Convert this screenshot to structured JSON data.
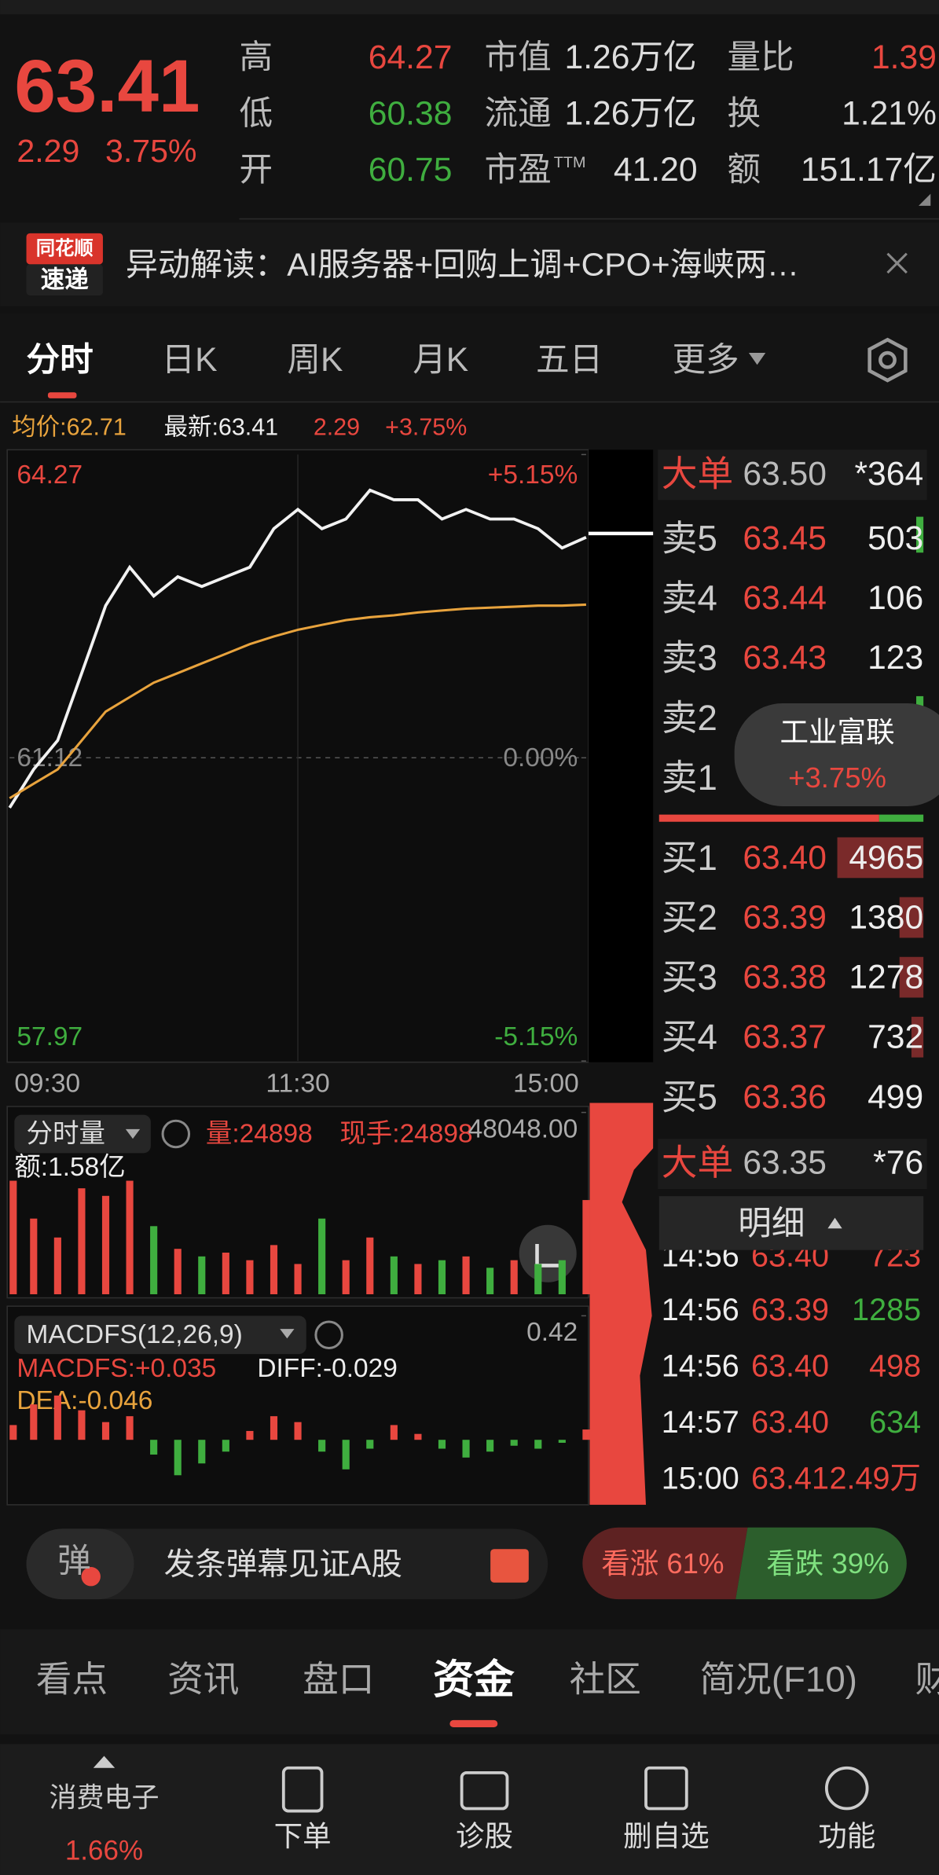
{
  "header": {
    "price": "63.41",
    "change": "2.29",
    "change_pct": "3.75%",
    "stats": [
      [
        {
          "label": "高",
          "value": "64.27"
        },
        {
          "label": "低",
          "value": "60.38"
        },
        {
          "label": "开",
          "value": "60.75"
        }
      ],
      [
        {
          "label": "市值",
          "value": "1.26万亿"
        },
        {
          "label": "流通",
          "value": "1.26万亿"
        },
        {
          "label": "市盈",
          "sup": "TTM",
          "value": "41.20"
        }
      ],
      [
        {
          "label": "量比",
          "value": "1.39"
        },
        {
          "label": "换",
          "value": "1.21%"
        },
        {
          "label": "额",
          "value": "151.17亿"
        }
      ]
    ]
  },
  "news": {
    "badge_top": "同花顺",
    "badge_bottom": "速递",
    "text": "异动解读：AI服务器+回购上调+CPO+海峡两…"
  },
  "tabs": [
    "分时",
    "日K",
    "周K",
    "月K",
    "五日",
    "更多"
  ],
  "info": {
    "avg": "均价:62.71",
    "latest": "最新:63.41",
    "change": "2.29",
    "pct": "+3.75%"
  },
  "volume_info": {
    "selector": "分时量",
    "volume": "量:24898",
    "current": "现手:24898",
    "amount": "额:1.58亿"
  },
  "macd_info": {
    "selector": "MACDFS(12,26,9)",
    "macdfs": "MACDFS:+0.035",
    "diff": "DIFF:-0.029",
    "dea": "DEA:-0.046"
  },
  "chart_data": [
    {
      "type": "line",
      "xlim": [
        0,
        240
      ],
      "ylim": [
        57.97,
        64.27
      ],
      "yticks": [
        57.97,
        61.12,
        64.27
      ],
      "y2lim": [
        -5.15,
        5.15
      ],
      "y2ticks": [
        {
          "value": -5.15,
          "label": "-5.15%"
        },
        {
          "value": 0,
          "label": "0.00%"
        },
        {
          "value": 5.15,
          "label": "+5.15%"
        }
      ],
      "xticks": [
        {
          "value": 0,
          "label": "09:30"
        },
        {
          "value": 120,
          "label": "11:30"
        },
        {
          "value": 240,
          "label": "15:00"
        }
      ],
      "x": [
        0,
        10,
        20,
        30,
        40,
        50,
        60,
        70,
        80,
        90,
        100,
        110,
        120,
        130,
        140,
        150,
        160,
        170,
        180,
        190,
        200,
        210,
        220,
        230,
        240
      ],
      "series": [
        {
          "name": "最新",
          "color": "#f2f2f2",
          "values": [
            60.6,
            61.0,
            61.3,
            62.0,
            62.7,
            63.1,
            62.8,
            63.0,
            62.9,
            63.0,
            63.1,
            63.5,
            63.7,
            63.5,
            63.6,
            63.9,
            63.8,
            63.8,
            63.6,
            63.7,
            63.6,
            63.6,
            63.5,
            63.3,
            63.41
          ]
        },
        {
          "name": "均价",
          "color": "#e8a33d",
          "values": [
            60.7,
            60.85,
            61.0,
            61.3,
            61.6,
            61.75,
            61.9,
            62.0,
            62.1,
            62.2,
            62.3,
            62.38,
            62.45,
            62.5,
            62.55,
            62.58,
            62.6,
            62.63,
            62.65,
            62.67,
            62.68,
            62.69,
            62.7,
            62.7,
            62.71
          ]
        }
      ]
    },
    {
      "type": "bar",
      "xlim": [
        0,
        240
      ],
      "ylim": [
        0,
        48048
      ],
      "yticks": [
        {
          "value": 48048,
          "label": "48048.00"
        }
      ],
      "x": [
        0,
        10,
        20,
        30,
        40,
        50,
        60,
        70,
        80,
        90,
        100,
        110,
        120,
        130,
        140,
        150,
        160,
        170,
        180,
        190,
        200,
        210,
        220,
        230,
        240
      ],
      "values": [
        30000,
        20000,
        15000,
        28000,
        26000,
        30000,
        18000,
        12000,
        10000,
        11000,
        9000,
        13000,
        8000,
        20000,
        9000,
        15000,
        10000,
        8000,
        9000,
        10000,
        7000,
        9000,
        8000,
        9000,
        24898
      ]
    },
    {
      "type": "bar",
      "xlim": [
        0,
        240
      ],
      "ylim": [
        -0.22,
        0.42
      ],
      "yticks": [
        0.42
      ],
      "x": [
        0,
        10,
        20,
        30,
        40,
        50,
        60,
        70,
        80,
        90,
        100,
        110,
        120,
        130,
        140,
        150,
        160,
        170,
        180,
        190,
        200,
        210,
        220,
        230,
        240
      ],
      "values": [
        0.05,
        0.12,
        0.15,
        0.1,
        0.06,
        0.08,
        -0.05,
        -0.12,
        -0.08,
        -0.04,
        0.03,
        0.08,
        0.06,
        -0.04,
        -0.1,
        -0.03,
        0.05,
        0.02,
        -0.03,
        -0.06,
        -0.04,
        -0.02,
        -0.03,
        -0.01,
        0.035
      ]
    }
  ],
  "order_book": {
    "big_sell": {
      "label": "大单",
      "price": "63.50",
      "qty": "*364"
    },
    "asks": [
      {
        "label": "卖5",
        "price": "63.45",
        "qty": "503"
      },
      {
        "label": "卖4",
        "price": "63.44",
        "qty": "106"
      },
      {
        "label": "卖3",
        "price": "63.43",
        "qty": "123"
      },
      {
        "label": "卖2"
      },
      {
        "label": "卖1"
      }
    ],
    "bids": [
      {
        "label": "买1",
        "price": "63.40",
        "qty": "4965"
      },
      {
        "label": "买2",
        "price": "63.39",
        "qty": "1380"
      },
      {
        "label": "买3",
        "price": "63.38",
        "qty": "1278"
      },
      {
        "label": "买4",
        "price": "63.37",
        "qty": "732"
      },
      {
        "label": "买5",
        "price": "63.36",
        "qty": "499"
      }
    ],
    "big_buy": {
      "label": "大单",
      "price": "63.35",
      "qty": "*76"
    }
  },
  "popup": {
    "name": "工业富联",
    "pct": "+3.75%"
  },
  "detail": {
    "title": "明细",
    "trades": [
      {
        "time": "14:56",
        "price": "63.40",
        "qty": "723"
      },
      {
        "time": "14:56",
        "price": "63.39",
        "qty": "1285"
      },
      {
        "time": "14:56",
        "price": "63.40",
        "qty": "498"
      },
      {
        "time": "14:57",
        "price": "63.40",
        "qty": "634"
      },
      {
        "time": "15:00",
        "price": "63.41",
        "qty": "2.49万"
      }
    ]
  },
  "danmu": {
    "icon": "弹",
    "placeholder": "发条弹幕见证A股"
  },
  "sentiment": {
    "up": "看涨 61%",
    "down": "看跌 39%"
  },
  "section_tabs": [
    "看点",
    "资讯",
    "盘口",
    "资金",
    "社区",
    "简况(F10)",
    "财"
  ],
  "nav": {
    "sector": "消费电子",
    "sector_pct": "1.66%",
    "items": [
      "下单",
      "诊股",
      "删自选",
      "功能"
    ]
  }
}
